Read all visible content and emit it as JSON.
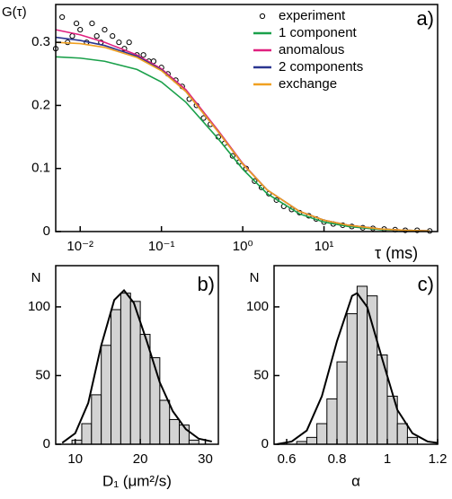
{
  "chart_data": [
    {
      "type": "line",
      "ylabel": "G(τ)",
      "xlabel": "τ (ms)",
      "panel": "a)",
      "log_x": true,
      "xlim": [
        0.005,
        250
      ],
      "ylim": [
        0,
        0.36
      ],
      "xticks": [
        {
          "value": 0.01,
          "label": "10⁻²"
        },
        {
          "value": 0.1,
          "label": "10⁻¹"
        },
        {
          "value": 1,
          "label": "10⁰"
        },
        {
          "value": 10,
          "label": "10¹"
        }
      ],
      "yticks": [
        0,
        0.1,
        0.2,
        0.3
      ],
      "legend": "upper right",
      "series": [
        {
          "name": "experiment",
          "mode": "markers",
          "color": "#000000",
          "x": [
            0.005,
            0.006,
            0.007,
            0.008,
            0.009,
            0.01,
            0.012,
            0.014,
            0.016,
            0.018,
            0.02,
            0.025,
            0.03,
            0.035,
            0.04,
            0.05,
            0.06,
            0.07,
            0.08,
            0.1,
            0.12,
            0.15,
            0.18,
            0.22,
            0.27,
            0.33,
            0.4,
            0.5,
            0.6,
            0.75,
            0.9,
            1.1,
            1.4,
            1.7,
            2.1,
            2.6,
            3.2,
            4,
            5,
            6.5,
            8,
            10,
            13,
            17,
            22,
            30,
            40,
            55,
            75,
            100,
            140,
            200
          ],
          "values": [
            0.29,
            0.34,
            0.3,
            0.31,
            0.33,
            0.32,
            0.3,
            0.33,
            0.31,
            0.3,
            0.32,
            0.31,
            0.3,
            0.29,
            0.3,
            0.28,
            0.28,
            0.27,
            0.27,
            0.26,
            0.25,
            0.24,
            0.23,
            0.21,
            0.2,
            0.18,
            0.17,
            0.15,
            0.14,
            0.12,
            0.11,
            0.1,
            0.08,
            0.07,
            0.06,
            0.05,
            0.04,
            0.035,
            0.03,
            0.025,
            0.02,
            0.015,
            0.012,
            0.01,
            0.008,
            0.006,
            0.005,
            0.004,
            0.003,
            0.002,
            0.002,
            0.001
          ]
        },
        {
          "name": "1 component",
          "mode": "lines",
          "color": "#1aa04a",
          "x": [
            0.005,
            0.01,
            0.02,
            0.05,
            0.1,
            0.2,
            0.5,
            1,
            2,
            5,
            10,
            20,
            50,
            100,
            200
          ],
          "values": [
            0.277,
            0.275,
            0.27,
            0.257,
            0.237,
            0.205,
            0.147,
            0.099,
            0.06,
            0.028,
            0.015,
            0.008,
            0.003,
            0.002,
            0.001
          ]
        },
        {
          "name": "anomalous",
          "mode": "lines",
          "color": "#e0207f",
          "x": [
            0.005,
            0.01,
            0.02,
            0.05,
            0.1,
            0.2,
            0.5,
            1,
            2,
            5,
            10,
            20,
            50,
            100,
            200
          ],
          "values": [
            0.32,
            0.312,
            0.3,
            0.28,
            0.258,
            0.225,
            0.16,
            0.108,
            0.066,
            0.032,
            0.018,
            0.01,
            0.004,
            0.002,
            0.001
          ]
        },
        {
          "name": "2 components",
          "mode": "lines",
          "color": "#2a3590",
          "x": [
            0.005,
            0.01,
            0.02,
            0.05,
            0.1,
            0.2,
            0.5,
            1,
            2,
            5,
            10,
            20,
            50,
            100,
            200
          ],
          "values": [
            0.308,
            0.303,
            0.295,
            0.278,
            0.256,
            0.222,
            0.158,
            0.107,
            0.066,
            0.032,
            0.018,
            0.01,
            0.004,
            0.002,
            0.001
          ]
        },
        {
          "name": "exchange",
          "mode": "lines",
          "color": "#f0a020",
          "x": [
            0.005,
            0.01,
            0.02,
            0.05,
            0.1,
            0.2,
            0.5,
            1,
            2,
            5,
            10,
            20,
            50,
            100,
            200
          ],
          "values": [
            0.3,
            0.298,
            0.292,
            0.276,
            0.255,
            0.222,
            0.158,
            0.107,
            0.066,
            0.032,
            0.018,
            0.01,
            0.004,
            0.002,
            0.001
          ]
        }
      ]
    },
    {
      "type": "histogram",
      "ylabel": "N",
      "xlabel": "D₁ (μm²/s)",
      "panel": "b)",
      "color": "#d3d3d3",
      "xlim": [
        7,
        32
      ],
      "ylim": [
        0,
        130
      ],
      "xticks": [
        10,
        20,
        30
      ],
      "yticks": [
        0,
        50,
        100
      ],
      "bins": [
        9.5,
        11,
        12.5,
        14,
        15.5,
        17,
        18.5,
        20,
        21.5,
        23,
        24.5,
        26,
        27.5,
        29
      ],
      "values": [
        3,
        15,
        36,
        72,
        98,
        110,
        104,
        80,
        63,
        32,
        18,
        14,
        3
      ],
      "curve": {
        "x": [
          8,
          10,
          12,
          14,
          16,
          17.5,
          19,
          21,
          23,
          25,
          27,
          29,
          31
        ],
        "values": [
          1,
          8,
          30,
          72,
          105,
          112,
          103,
          75,
          45,
          24,
          11,
          4,
          2
        ]
      }
    },
    {
      "type": "histogram",
      "ylabel": "N",
      "xlabel": "α",
      "panel": "c)",
      "color": "#d3d3d3",
      "xlim": [
        0.55,
        1.2
      ],
      "ylim": [
        0,
        130
      ],
      "xticks": [
        0.6,
        0.8,
        1,
        1.2
      ],
      "yticks": [
        0,
        50,
        100
      ],
      "bins": [
        0.64,
        0.68,
        0.72,
        0.76,
        0.8,
        0.84,
        0.88,
        0.92,
        0.96,
        1.0,
        1.04,
        1.08,
        1.12
      ],
      "values": [
        2,
        5,
        15,
        33,
        60,
        95,
        115,
        108,
        65,
        35,
        15,
        5
      ],
      "curve": {
        "x": [
          0.56,
          0.62,
          0.68,
          0.74,
          0.8,
          0.86,
          0.88,
          0.92,
          0.98,
          1.04,
          1.1,
          1.16,
          1.2
        ],
        "values": [
          0,
          2,
          10,
          35,
          75,
          108,
          110,
          100,
          62,
          25,
          8,
          2,
          1
        ]
      }
    }
  ]
}
